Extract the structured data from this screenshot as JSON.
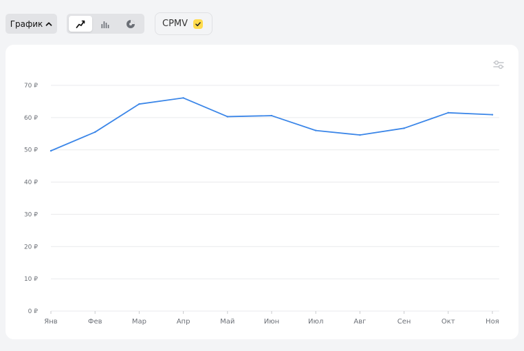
{
  "toolbar": {
    "view_dropdown_label": "График",
    "chart_type_icons": [
      "line-chart-icon",
      "bar-chart-icon",
      "pie-chart-icon"
    ],
    "active_chart_type": "line",
    "metric_label": "CPMV",
    "metric_checked": true
  },
  "colors": {
    "line": "#3b86e8",
    "grid": "#e9eaec",
    "axis_text": "#6b6f76",
    "check": "#ffdb4d"
  },
  "chart_data": {
    "type": "line",
    "categories": [
      "Янв",
      "Фев",
      "Мар",
      "Апр",
      "Май",
      "Июн",
      "Июл",
      "Авг",
      "Сен",
      "Окт",
      "Ноя"
    ],
    "series": [
      {
        "values": [
          49.7,
          55.5,
          64.2,
          66.1,
          60.3,
          60.6,
          56.0,
          54.6,
          56.7,
          61.5,
          60.9
        ]
      }
    ],
    "y_ticks": [
      "0 ₽",
      "10 ₽",
      "20 ₽",
      "30 ₽",
      "40 ₽",
      "50 ₽",
      "60 ₽",
      "70 ₽"
    ],
    "y_tick_values": [
      0,
      10,
      20,
      30,
      40,
      50,
      60,
      70
    ],
    "ylim": [
      0,
      70
    ],
    "grid": true,
    "legend": "none"
  }
}
